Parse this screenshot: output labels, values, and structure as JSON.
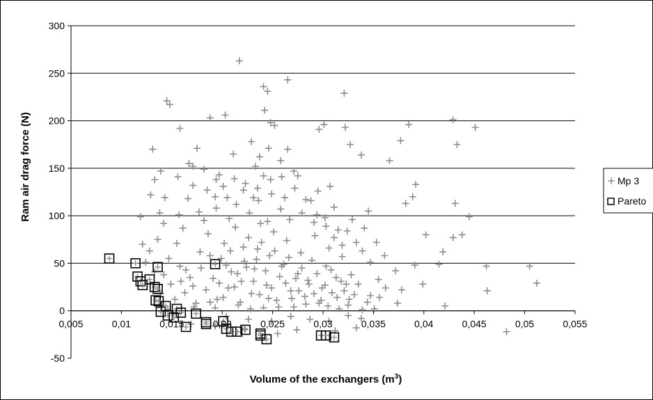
{
  "chart_data": {
    "type": "scatter",
    "title": "",
    "xlabel": "Volume of the exchangers (m",
    "xlabel_sup": "3",
    "xlabel_end": ")",
    "ylabel": "Ram air drag force  (N)",
    "xlim": [
      0.005,
      0.055
    ],
    "ylim": [
      -50,
      300
    ],
    "x_ticks": [
      "0,005",
      "0,01",
      "0,015",
      "0,02",
      "0,025",
      "0,03",
      "0,035",
      "0,04",
      "0,045",
      "0,05",
      "0,055"
    ],
    "x_tick_values": [
      0.005,
      0.01,
      0.015,
      0.02,
      0.025,
      0.03,
      0.035,
      0.04,
      0.045,
      0.05,
      0.055
    ],
    "y_ticks": [
      "-50",
      "0",
      "50",
      "100",
      "150",
      "200",
      "250",
      "300"
    ],
    "y_tick_values": [
      -50,
      0,
      50,
      100,
      150,
      200,
      250,
      300
    ],
    "grid": "horizontal",
    "legend_position": "right",
    "colors": {
      "mp3": "#8c8c8c",
      "pareto": "#000000"
    },
    "series": [
      {
        "name": "Mp 3",
        "marker": "plus",
        "points": [
          [
            0.0217,
            263
          ],
          [
            0.0265,
            243
          ],
          [
            0.0241,
            236
          ],
          [
            0.0245,
            231
          ],
          [
            0.0321,
            229
          ],
          [
            0.0188,
            203
          ],
          [
            0.0203,
            206
          ],
          [
            0.0242,
            211
          ],
          [
            0.0248,
            198
          ],
          [
            0.0252,
            195
          ],
          [
            0.0296,
            191
          ],
          [
            0.0301,
            196
          ],
          [
            0.0322,
            193
          ],
          [
            0.0158,
            192
          ],
          [
            0.0145,
            221
          ],
          [
            0.0148,
            217
          ],
          [
            0.0385,
            196
          ],
          [
            0.0429,
            201
          ],
          [
            0.0451,
            193
          ],
          [
            0.0433,
            175
          ],
          [
            0.0377,
            179
          ],
          [
            0.0131,
            170
          ],
          [
            0.0175,
            171
          ],
          [
            0.0211,
            165
          ],
          [
            0.0265,
            170
          ],
          [
            0.0327,
            175
          ],
          [
            0.0338,
            164
          ],
          [
            0.0366,
            158
          ],
          [
            0.0392,
            133
          ],
          [
            0.0389,
            120
          ],
          [
            0.0382,
            113
          ],
          [
            0.0431,
            113
          ],
          [
            0.0438,
            80
          ],
          [
            0.0445,
            99
          ],
          [
            0.0429,
            77
          ],
          [
            0.0402,
            80
          ],
          [
            0.0391,
            48
          ],
          [
            0.0415,
            49
          ],
          [
            0.0419,
            62
          ],
          [
            0.0462,
            47
          ],
          [
            0.0505,
            47
          ],
          [
            0.0512,
            29
          ],
          [
            0.0463,
            21
          ],
          [
            0.0421,
            5
          ],
          [
            0.0482,
            -22
          ],
          [
            0.0399,
            28
          ],
          [
            0.0374,
            8
          ],
          [
            0.0351,
            2
          ],
          [
            0.0362,
            24
          ],
          [
            0.0119,
            99
          ],
          [
            0.0121,
            70
          ],
          [
            0.0129,
            122
          ],
          [
            0.0133,
            138
          ],
          [
            0.0143,
            119
          ],
          [
            0.0138,
            103
          ],
          [
            0.0167,
            155
          ],
          [
            0.0171,
            132
          ],
          [
            0.0197,
            143
          ],
          [
            0.0205,
            119
          ],
          [
            0.0223,
            134
          ],
          [
            0.0235,
            129
          ],
          [
            0.0248,
            138
          ],
          [
            0.0262,
            119
          ],
          [
            0.0275,
            142
          ],
          [
            0.0288,
            116
          ],
          [
            0.0295,
            126
          ],
          [
            0.0307,
            131
          ],
          [
            0.0311,
            109
          ],
          [
            0.0329,
            96
          ],
          [
            0.0341,
            87
          ],
          [
            0.0345,
            105
          ],
          [
            0.0353,
            72
          ],
          [
            0.0361,
            58
          ],
          [
            0.0372,
            42
          ],
          [
            0.0378,
            22
          ],
          [
            0.0356,
            14
          ],
          [
            0.0344,
            9
          ],
          [
            0.0338,
            -8
          ],
          [
            0.0333,
            -18
          ],
          [
            0.0312,
            -21
          ],
          [
            0.0274,
            -20
          ],
          [
            0.0255,
            -24
          ],
          [
            0.0222,
            -19
          ],
          [
            0.0193,
            -16
          ],
          [
            0.0169,
            -14
          ],
          [
            0.0152,
            -3
          ],
          [
            0.0139,
            18
          ],
          [
            0.0142,
            38
          ],
          [
            0.0147,
            55
          ],
          [
            0.0155,
            71
          ],
          [
            0.0161,
            87
          ],
          [
            0.0164,
            43
          ],
          [
            0.0171,
            26
          ],
          [
            0.0178,
            62
          ],
          [
            0.0182,
            95
          ],
          [
            0.0186,
            81
          ],
          [
            0.0191,
            34
          ],
          [
            0.0195,
            12
          ],
          [
            0.0199,
            55
          ],
          [
            0.0202,
            71
          ],
          [
            0.0206,
            24
          ],
          [
            0.0209,
            41
          ],
          [
            0.0213,
            88
          ],
          [
            0.0216,
            6
          ],
          [
            0.0219,
            31
          ],
          [
            0.0222,
            52
          ],
          [
            0.0226,
            77
          ],
          [
            0.0229,
            18
          ],
          [
            0.0232,
            44
          ],
          [
            0.0235,
            65
          ],
          [
            0.0238,
            92
          ],
          [
            0.0241,
            3
          ],
          [
            0.0244,
            27
          ],
          [
            0.0247,
            58
          ],
          [
            0.0251,
            83
          ],
          [
            0.0254,
            11
          ],
          [
            0.0257,
            36
          ],
          [
            0.0261,
            49
          ],
          [
            0.0264,
            74
          ],
          [
            0.0268,
            21
          ],
          [
            0.0271,
            4
          ],
          [
            0.0275,
            39
          ],
          [
            0.0278,
            61
          ],
          [
            0.0282,
            15
          ],
          [
            0.0285,
            32
          ],
          [
            0.0289,
            53
          ],
          [
            0.0292,
            79
          ],
          [
            0.0296,
            8
          ],
          [
            0.0299,
            24
          ],
          [
            0.0303,
            47
          ],
          [
            0.0306,
            66
          ],
          [
            0.0309,
            19
          ],
          [
            0.0313,
            35
          ],
          [
            0.0316,
            2
          ],
          [
            0.0319,
            57
          ],
          [
            0.0323,
            28
          ],
          [
            0.0326,
            12
          ],
          [
            0.0149,
            28
          ],
          [
            0.0153,
            12
          ],
          [
            0.0158,
            47
          ],
          [
            0.0163,
            19
          ],
          [
            0.0168,
            35
          ],
          [
            0.0174,
            8
          ],
          [
            0.0179,
            45
          ],
          [
            0.0184,
            22
          ],
          [
            0.0188,
            58
          ],
          [
            0.0193,
            3
          ],
          [
            0.0197,
            29
          ],
          [
            0.0201,
            14
          ],
          [
            0.0204,
            48
          ],
          [
            0.0208,
            63
          ],
          [
            0.0212,
            25
          ],
          [
            0.0215,
            39
          ],
          [
            0.0218,
            9
          ],
          [
            0.0221,
            67
          ],
          [
            0.0224,
            46
          ],
          [
            0.0228,
            2
          ],
          [
            0.0231,
            31
          ],
          [
            0.0234,
            54
          ],
          [
            0.0237,
            17
          ],
          [
            0.0239,
            72
          ],
          [
            0.0243,
            42
          ],
          [
            0.0246,
            13
          ],
          [
            0.0249,
            24
          ],
          [
            0.0252,
            63
          ],
          [
            0.0256,
            4
          ],
          [
            0.0259,
            47
          ],
          [
            0.0263,
            29
          ],
          [
            0.0266,
            56
          ],
          [
            0.0269,
            13
          ],
          [
            0.0273,
            34
          ],
          [
            0.0276,
            21
          ],
          [
            0.0279,
            45
          ],
          [
            0.0283,
            7
          ],
          [
            0.0286,
            28
          ],
          [
            0.0291,
            18
          ],
          [
            0.0294,
            39
          ],
          [
            0.0298,
            11
          ],
          [
            0.0302,
            27
          ],
          [
            0.0305,
            5
          ],
          [
            0.0308,
            43
          ],
          [
            0.0314,
            14
          ],
          [
            0.0318,
            31
          ],
          [
            0.0321,
            21
          ],
          [
            0.0325,
            6
          ],
          [
            0.0328,
            38
          ],
          [
            0.0331,
            17
          ],
          [
            0.0335,
            28
          ],
          [
            0.0157,
            101
          ],
          [
            0.0166,
            118
          ],
          [
            0.0177,
            104
          ],
          [
            0.0185,
            127
          ],
          [
            0.0194,
            108
          ],
          [
            0.0207,
            97
          ],
          [
            0.0214,
            112
          ],
          [
            0.0227,
            103
          ],
          [
            0.0236,
            116
          ],
          [
            0.0245,
            94
          ],
          [
            0.0258,
            107
          ],
          [
            0.0267,
            96
          ],
          [
            0.0279,
            103
          ],
          [
            0.0291,
            93
          ],
          [
            0.0302,
            98
          ],
          [
            0.0315,
            85
          ],
          [
            0.0229,
            178
          ],
          [
            0.0237,
            162
          ],
          [
            0.0246,
            171
          ],
          [
            0.0233,
            152
          ],
          [
            0.0258,
            158
          ],
          [
            0.0271,
            147
          ],
          [
            0.0182,
            149
          ],
          [
            0.0194,
            138
          ],
          [
            0.0171,
            152
          ],
          [
            0.0156,
            141
          ],
          [
            0.0139,
            147
          ],
          [
            0.0142,
            92
          ],
          [
            0.0136,
            75
          ],
          [
            0.0128,
            63
          ],
          [
            0.0124,
            51
          ],
          [
            0.0133,
            41
          ],
          [
            0.0146,
            1
          ],
          [
            0.0159,
            31
          ],
          [
            0.0172,
            4
          ],
          [
            0.0188,
            9
          ],
          [
            0.0204,
            -6
          ],
          [
            0.0226,
            -9
          ],
          [
            0.0249,
            -11
          ],
          [
            0.0268,
            -6
          ],
          [
            0.0287,
            -9
          ],
          [
            0.0306,
            -11
          ],
          [
            0.0325,
            -5
          ],
          [
            0.0339,
            1
          ],
          [
            0.0347,
            16
          ],
          [
            0.0355,
            33
          ],
          [
            0.0347,
            51
          ],
          [
            0.0339,
            63
          ],
          [
            0.0333,
            72
          ],
          [
            0.0324,
            84
          ],
          [
            0.0319,
            69
          ],
          [
            0.0311,
            77
          ],
          [
            0.0303,
            89
          ],
          [
            0.0294,
            101
          ],
          [
            0.0283,
            117
          ],
          [
            0.0272,
            129
          ],
          [
            0.0259,
            141
          ],
          [
            0.0249,
            123
          ],
          [
            0.0241,
            142
          ],
          [
            0.0231,
            119
          ],
          [
            0.0221,
            127
          ],
          [
            0.0212,
            139
          ],
          [
            0.0201,
            131
          ],
          [
            0.0193,
            120
          ]
        ]
      },
      {
        "name": "Pareto",
        "marker": "open-square",
        "points": [
          [
            0.0088,
            55
          ],
          [
            0.0114,
            50
          ],
          [
            0.0116,
            36
          ],
          [
            0.0119,
            31
          ],
          [
            0.0121,
            27
          ],
          [
            0.0128,
            33
          ],
          [
            0.0133,
            25
          ],
          [
            0.0136,
            23
          ],
          [
            0.0136,
            46
          ],
          [
            0.0134,
            11
          ],
          [
            0.0137,
            10
          ],
          [
            0.0139,
            -1
          ],
          [
            0.0144,
            5
          ],
          [
            0.0146,
            -5
          ],
          [
            0.0152,
            -7
          ],
          [
            0.0155,
            2
          ],
          [
            0.0159,
            -2
          ],
          [
            0.0164,
            -17
          ],
          [
            0.0174,
            -3
          ],
          [
            0.0184,
            -12
          ],
          [
            0.0184,
            -14
          ],
          [
            0.0193,
            49
          ],
          [
            0.0201,
            -11
          ],
          [
            0.0204,
            -19
          ],
          [
            0.0209,
            -22
          ],
          [
            0.0215,
            -22
          ],
          [
            0.0223,
            -20
          ],
          [
            0.0238,
            -26
          ],
          [
            0.0244,
            -30
          ],
          [
            0.0298,
            -26
          ],
          [
            0.0303,
            -26
          ],
          [
            0.0311,
            -28
          ],
          [
            0.0238,
            -24
          ]
        ]
      }
    ]
  }
}
